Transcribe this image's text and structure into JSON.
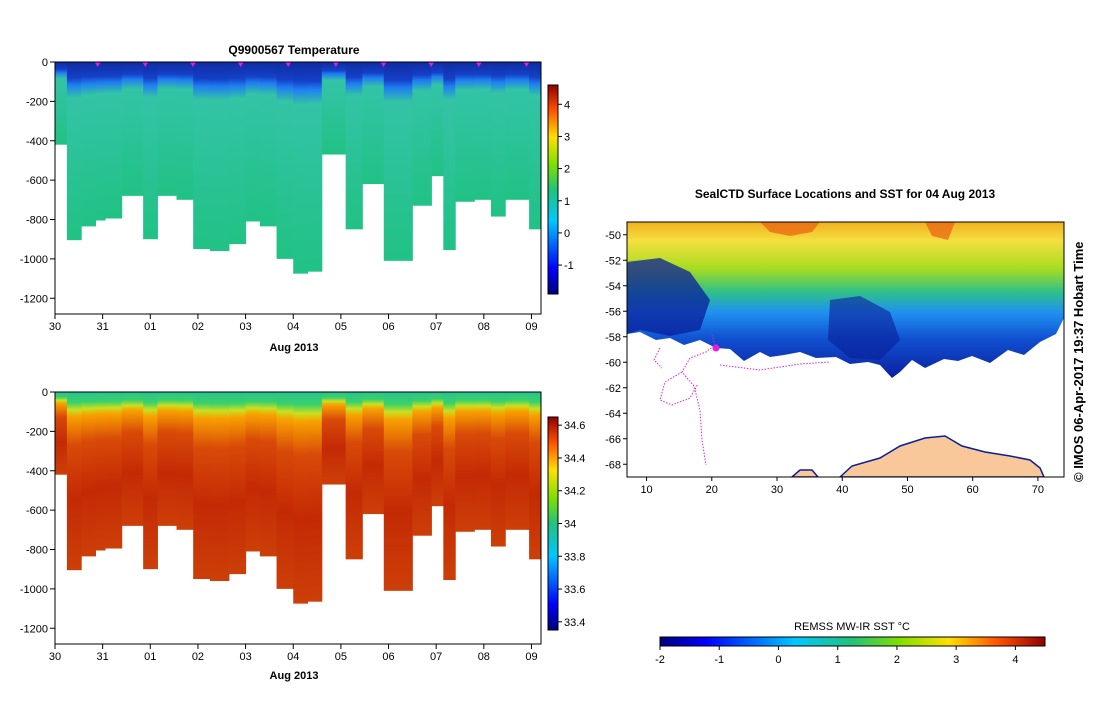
{
  "chart_data": [
    {
      "type": "heatmap",
      "title": "Q9900567  Temperature",
      "xlabel": "Aug 2013",
      "ylabel": "",
      "ylim": [
        -1280,
        0
      ],
      "xlim": [
        0,
        10.2
      ],
      "x_ticks": [
        "30",
        "31",
        "01",
        "02",
        "03",
        "04",
        "05",
        "06",
        "07",
        "08",
        "09"
      ],
      "y_ticks": [
        "0",
        "-200",
        "-400",
        "-600",
        "-800",
        "-1000",
        "-1200"
      ],
      "colorbar": {
        "min": -1.9,
        "max": 4.6,
        "ticks": [
          "4",
          "3",
          "2",
          "1",
          "0",
          "-1"
        ]
      },
      "profile_markers": [
        1,
        2,
        3,
        4,
        5,
        6,
        7,
        8,
        9,
        10
      ],
      "profiles": [
        {
          "t": 0.0,
          "depth": 420
        },
        {
          "t": 0.25,
          "depth": 905
        },
        {
          "t": 0.55,
          "depth": 835
        },
        {
          "t": 0.85,
          "depth": 805
        },
        {
          "t": 1.05,
          "depth": 795
        },
        {
          "t": 1.4,
          "depth": 680
        },
        {
          "t": 1.85,
          "depth": 900
        },
        {
          "t": 2.15,
          "depth": 680
        },
        {
          "t": 2.55,
          "depth": 700
        },
        {
          "t": 2.9,
          "depth": 950
        },
        {
          "t": 3.25,
          "depth": 960
        },
        {
          "t": 3.65,
          "depth": 925
        },
        {
          "t": 4.0,
          "depth": 810
        },
        {
          "t": 4.3,
          "depth": 835
        },
        {
          "t": 4.65,
          "depth": 1000
        },
        {
          "t": 5.0,
          "depth": 1075
        },
        {
          "t": 5.3,
          "depth": 1065
        },
        {
          "t": 5.6,
          "depth": 470
        },
        {
          "t": 6.1,
          "depth": 850
        },
        {
          "t": 6.45,
          "depth": 620
        },
        {
          "t": 6.9,
          "depth": 1010
        },
        {
          "t": 7.5,
          "depth": 730
        },
        {
          "t": 7.9,
          "depth": 580
        },
        {
          "t": 8.15,
          "depth": 955
        },
        {
          "t": 8.4,
          "depth": 710
        },
        {
          "t": 8.8,
          "depth": 700
        },
        {
          "t": 9.15,
          "depth": 785
        },
        {
          "t": 9.45,
          "depth": 700
        },
        {
          "t": 9.95,
          "depth": 850
        }
      ]
    },
    {
      "type": "heatmap",
      "title": "",
      "xlabel": "Aug 2013",
      "ylabel": "",
      "ylim": [
        -1280,
        0
      ],
      "xlim": [
        0,
        10.2
      ],
      "x_ticks": [
        "30",
        "31",
        "01",
        "02",
        "03",
        "04",
        "05",
        "06",
        "07",
        "08",
        "09"
      ],
      "y_ticks": [
        "0",
        "-200",
        "-400",
        "-600",
        "-800",
        "-1000",
        "-1200"
      ],
      "colorbar": {
        "min": 33.35,
        "max": 34.65,
        "ticks": [
          "34.6",
          "34.4",
          "34.2",
          "34",
          "33.8",
          "33.6",
          "33.4"
        ]
      }
    },
    {
      "type": "heatmap",
      "title": "SealCTD Surface Locations and SST for 04 Aug 2013",
      "xlabel": "",
      "ylabel": "",
      "xlim": [
        7,
        74
      ],
      "ylim": [
        -69,
        -49
      ],
      "x_ticks": [
        "10",
        "20",
        "30",
        "40",
        "50",
        "60",
        "70"
      ],
      "y_ticks": [
        "-50",
        "-52",
        "-54",
        "-56",
        "-58",
        "-60",
        "-62",
        "-64",
        "-66",
        "-68"
      ],
      "colorbar": {
        "label": "REMSS MW-IR SST °C",
        "min": -2,
        "max": 4.5,
        "ticks": [
          "-2",
          "-1",
          "0",
          "1",
          "2",
          "3",
          "4"
        ]
      },
      "stamp": "© IMOS 06-Apr-2017 19:37 Hobart Time"
    }
  ]
}
